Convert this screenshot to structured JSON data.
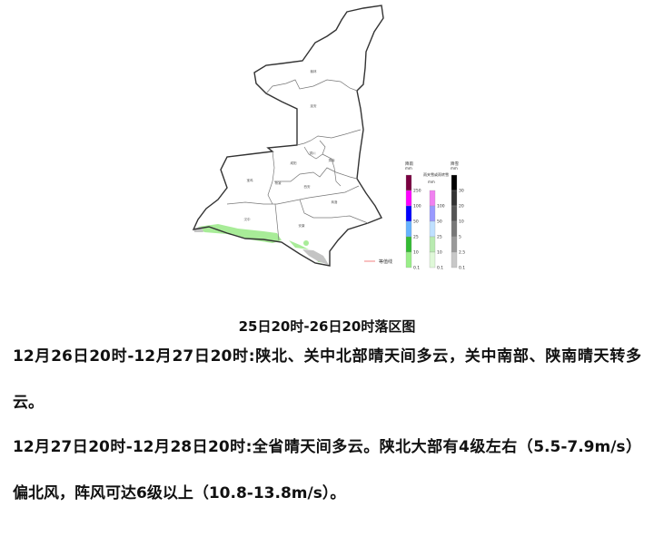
{
  "map": {
    "cities": [
      "榆林",
      "延安",
      "铜川",
      "渭南",
      "咸阳",
      "宝鸡",
      "杨凌",
      "西安",
      "商洛",
      "汉中",
      "安康"
    ],
    "legend": {
      "rain": {
        "title": "降雨",
        "unit": "mm",
        "ticks": [
          "250",
          "100",
          "50",
          "25",
          "10",
          "0.1"
        ],
        "colors": [
          "#7a0040",
          "#ff00ff",
          "#0000ff",
          "#66b3ff",
          "#33bb33",
          "#99ee88"
        ]
      },
      "sleet": {
        "title": "雨夹雪或雨转雪",
        "unit": "mm",
        "ticks": [
          "100",
          "50",
          "25",
          "10",
          "0.1"
        ],
        "colors": [
          "#f080f0",
          "#9999ff",
          "#bfe0ff",
          "#b8eab0",
          "#dff8d8"
        ]
      },
      "snow": {
        "title": "降雪",
        "unit": "mm",
        "ticks": [
          "30",
          "20",
          "10",
          "5",
          "2.5",
          "0.1"
        ],
        "colors": [
          "#000000",
          "#333333",
          "#555555",
          "#777777",
          "#999999",
          "#c8c8c8"
        ]
      },
      "isoline_label": "等值线",
      "isoline_color": "#f08080"
    }
  },
  "caption": "25日20时-26日20时落区图",
  "paragraphs": [
    "12月26日20时-12月27日20时:陕北、关中北部晴天间多云，关中南部、陕南晴天转多云。",
    "12月27日20时-12月28日20时:全省晴天间多云。陕北大部有4级左右（5.5-7.9m/s）偏北风，阵风可达6级以上（10.8-13.8m/s）。"
  ]
}
